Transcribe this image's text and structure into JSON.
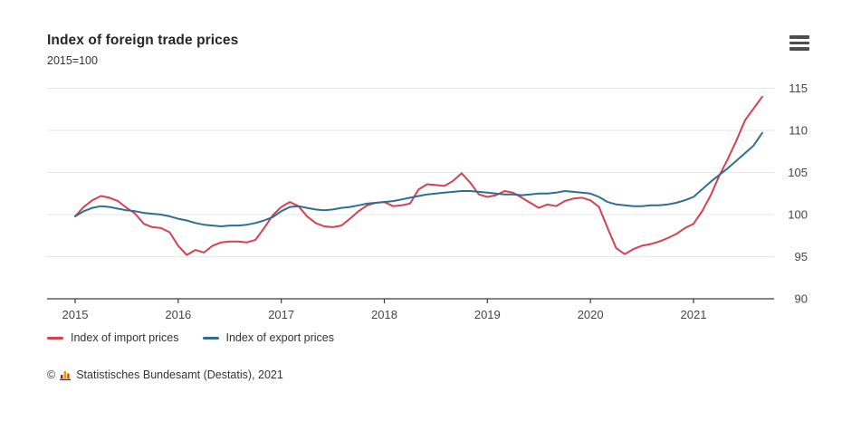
{
  "header": {
    "title": "Index of foreign trade prices",
    "subtitle": "2015=100"
  },
  "footer": {
    "copyright_symbol": "©",
    "source": "Statistisches Bundesamt (Destatis), 2021"
  },
  "chart_data": {
    "type": "line",
    "title": "Index of foreign trade prices",
    "subtitle": "2015=100",
    "x_start": "2015-01",
    "x_end": "2021-09",
    "x_interval": "monthly",
    "x_ticks": [
      2015,
      2016,
      2017,
      2018,
      2019,
      2020,
      2021
    ],
    "y_ticks": [
      90,
      95,
      100,
      105,
      110,
      115
    ],
    "ylim": [
      90,
      115
    ],
    "grid": "horizontal",
    "legend_position": "bottom-left",
    "colors": {
      "grid": "#e7e7e7",
      "axis": "#3c3c3c",
      "tick_label": "#454545"
    },
    "series": [
      {
        "name": "Index of import prices",
        "color": "#d4val",
        "values": []
      },
      {
        "name": "Index of export prices",
        "color": "#2f6e91",
        "values": []
      }
    ]
  }
}
